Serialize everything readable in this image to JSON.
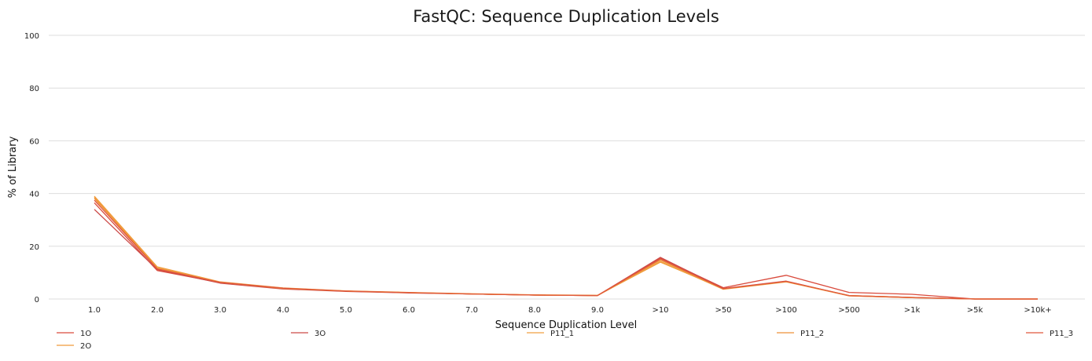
{
  "chart_data": {
    "type": "line",
    "title": "FastQC: Sequence Duplication Levels",
    "xlabel": "Sequence Duplication Level",
    "ylabel": "% of Library",
    "categories": [
      "1.0",
      "2.0",
      "3.0",
      "4.0",
      "5.0",
      "6.0",
      "7.0",
      "8.0",
      "9.0",
      ">10",
      ">50",
      ">100",
      ">500",
      ">1k",
      ">5k",
      ">10k+"
    ],
    "yticks": [
      0,
      20,
      40,
      60,
      80,
      100
    ],
    "ylim": [
      0,
      100
    ],
    "grid": true,
    "legend_position": "bottom",
    "series": [
      {
        "name": "1O",
        "color": "#d94a3c",
        "values": [
          36.5,
          10.8,
          6.2,
          4.0,
          3.0,
          2.4,
          1.9,
          1.5,
          1.3,
          15.5,
          4.3,
          9.0,
          2.5,
          1.8,
          0.0,
          0.0
        ]
      },
      {
        "name": "2O",
        "color": "#f09a3a",
        "values": [
          39.0,
          12.2,
          6.5,
          4.2,
          3.1,
          2.5,
          2.0,
          1.6,
          1.4,
          14.0,
          3.9,
          6.6,
          1.3,
          0.6,
          0.0,
          0.0
        ]
      },
      {
        "name": "3O",
        "color": "#cc4a48",
        "values": [
          34.0,
          11.2,
          6.0,
          3.8,
          2.9,
          2.3,
          1.9,
          1.5,
          1.3,
          15.8,
          4.0,
          6.8,
          1.2,
          0.5,
          0.0,
          0.0
        ]
      },
      {
        "name": "P11_1",
        "color": "#f0a040",
        "values": [
          38.6,
          11.8,
          6.4,
          4.1,
          3.0,
          2.4,
          1.9,
          1.5,
          1.3,
          14.3,
          3.7,
          6.5,
          1.2,
          0.5,
          0.0,
          0.0
        ]
      },
      {
        "name": "P11_2",
        "color": "#ee9038",
        "values": [
          38.2,
          11.6,
          6.3,
          4.0,
          3.0,
          2.4,
          1.9,
          1.5,
          1.3,
          14.8,
          3.8,
          6.6,
          1.3,
          0.6,
          0.0,
          0.0
        ]
      },
      {
        "name": "P11_3",
        "color": "#e0583c",
        "values": [
          37.5,
          11.4,
          6.3,
          4.1,
          3.0,
          2.4,
          1.9,
          1.5,
          1.3,
          15.2,
          3.9,
          6.7,
          1.3,
          0.6,
          0.0,
          0.0
        ]
      }
    ]
  }
}
